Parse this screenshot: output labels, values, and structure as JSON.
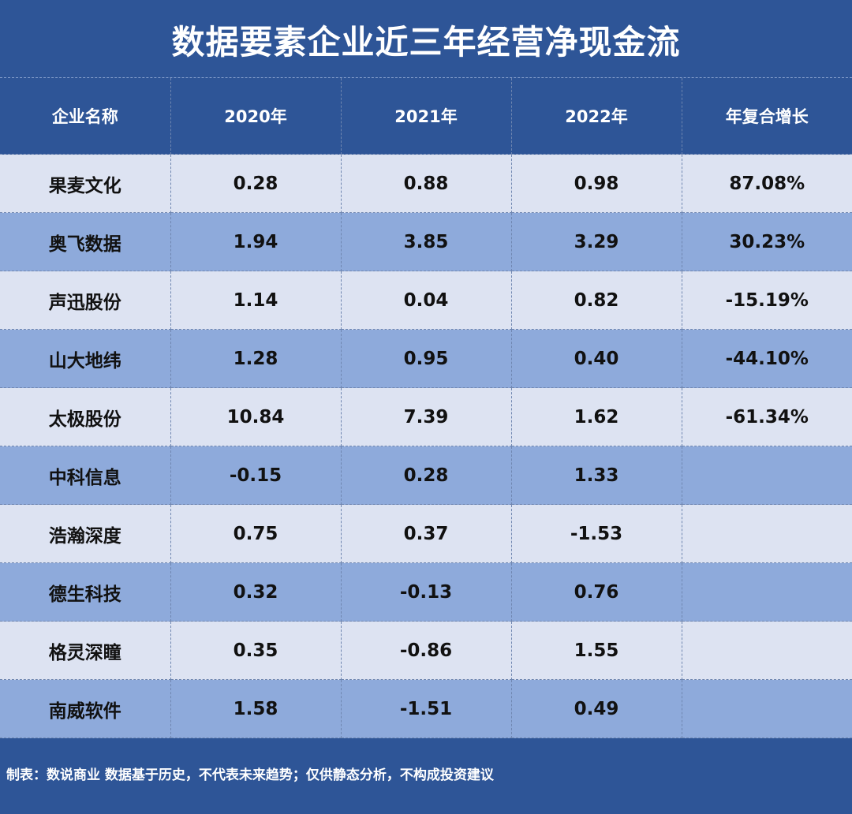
{
  "title": "数据要素企业近三年经营净现金流",
  "chart_data": {
    "type": "table",
    "title": "数据要素企业近三年经营净现金流",
    "columns": [
      "企业名称",
      "2020年",
      "2021年",
      "2022年",
      "年复合增长"
    ],
    "rows": [
      [
        "果麦文化",
        "0.28",
        "0.88",
        "0.98",
        "87.08%"
      ],
      [
        "奥飞数据",
        "1.94",
        "3.85",
        "3.29",
        "30.23%"
      ],
      [
        "声迅股份",
        "1.14",
        "0.04",
        "0.82",
        "-15.19%"
      ],
      [
        "山大地纬",
        "1.28",
        "0.95",
        "0.40",
        "-44.10%"
      ],
      [
        "太极股份",
        "10.84",
        "7.39",
        "1.62",
        "-61.34%"
      ],
      [
        "中科信息",
        "-0.15",
        "0.28",
        "1.33",
        ""
      ],
      [
        "浩瀚深度",
        "0.75",
        "0.37",
        "-1.53",
        ""
      ],
      [
        "德生科技",
        "0.32",
        "-0.13",
        "0.76",
        ""
      ],
      [
        "格灵深瞳",
        "0.35",
        "-0.86",
        "1.55",
        ""
      ],
      [
        "南威软件",
        "1.58",
        "-1.51",
        "0.49",
        ""
      ]
    ]
  },
  "colors": {
    "background": "#2e5597",
    "row_light": "#dde3f2",
    "row_dark": "#8eaadb",
    "header_text": "#ffffff",
    "cell_text": "#111111"
  },
  "footer": "制表：数说商业 数据基于历史，不代表未来趋势；仅供静态分析，不构成投资建议"
}
